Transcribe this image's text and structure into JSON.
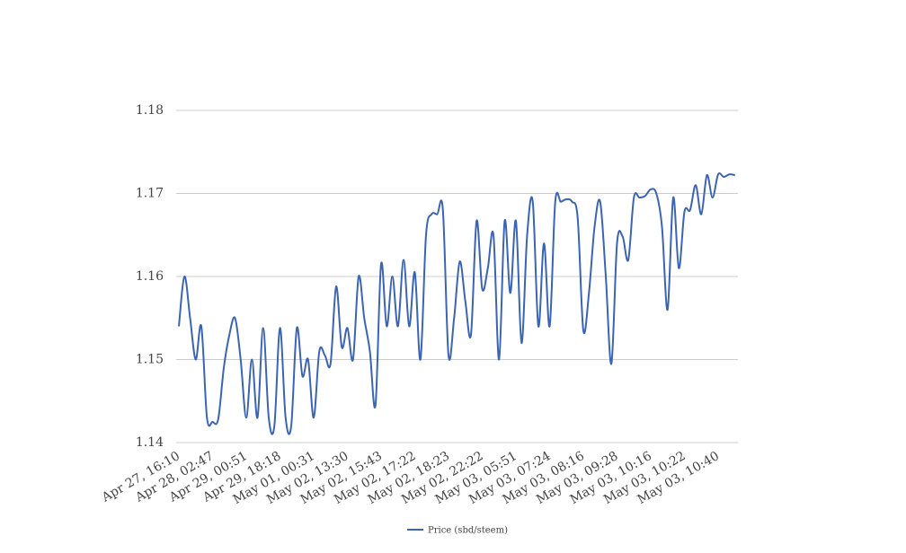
{
  "chart_data": {
    "type": "line",
    "categories": [
      "Apr 27, 16:10",
      null,
      null,
      null,
      null,
      null,
      "Apr 28, 02:47",
      null,
      null,
      null,
      null,
      null,
      "Apr 29, 00:51",
      null,
      null,
      null,
      null,
      null,
      "Apr 29, 18:18",
      null,
      null,
      null,
      null,
      null,
      "May 01, 00:31",
      null,
      null,
      null,
      null,
      null,
      "May 02, 13:30",
      null,
      null,
      null,
      null,
      null,
      "May 02, 15:43",
      null,
      null,
      null,
      null,
      null,
      "May 02, 17:22",
      null,
      null,
      null,
      null,
      null,
      "May 02, 18:23",
      null,
      null,
      null,
      null,
      null,
      "May 02, 22:22",
      null,
      null,
      null,
      null,
      null,
      "May 03, 05:51",
      null,
      null,
      null,
      null,
      null,
      "May 03, 07:24",
      null,
      null,
      null,
      null,
      null,
      "May 03, 08:16",
      null,
      null,
      null,
      null,
      null,
      "May 03, 09:28",
      null,
      null,
      null,
      null,
      null,
      "May 03, 10:16",
      null,
      null,
      null,
      null,
      null,
      "May 03, 10:22",
      null,
      null,
      null,
      null,
      null,
      "May 03, 10:40",
      null,
      null,
      null
    ],
    "series": [
      {
        "name": "Price (sbd/steem)",
        "color": "#3a64b4",
        "values": [
          1.154,
          1.16,
          1.155,
          1.15,
          1.154,
          1.143,
          1.1425,
          1.1428,
          1.149,
          1.153,
          1.155,
          1.15,
          1.143,
          1.15,
          1.143,
          1.1538,
          1.143,
          1.142,
          1.1538,
          1.143,
          1.142,
          1.1538,
          1.148,
          1.15,
          1.143,
          1.151,
          1.1505,
          1.1495,
          1.1588,
          1.1515,
          1.1538,
          1.15,
          1.16,
          1.155,
          1.151,
          1.1445,
          1.1615,
          1.154,
          1.16,
          1.154,
          1.162,
          1.154,
          1.1605,
          1.15,
          1.165,
          1.1675,
          1.1675,
          1.168,
          1.1505,
          1.155,
          1.1618,
          1.157,
          1.153,
          1.1667,
          1.1585,
          1.161,
          1.165,
          1.15,
          1.1667,
          1.158,
          1.1667,
          1.152,
          1.165,
          1.169,
          1.154,
          1.164,
          1.154,
          1.169,
          1.169,
          1.1693,
          1.169,
          1.167,
          1.1535,
          1.158,
          1.166,
          1.169,
          1.16,
          1.1495,
          1.164,
          1.1648,
          1.162,
          1.1695,
          1.1695,
          1.1697,
          1.1705,
          1.17,
          1.166,
          1.156,
          1.1695,
          1.161,
          1.1678,
          1.168,
          1.171,
          1.1675,
          1.1722,
          1.1695,
          1.1723,
          1.172,
          1.1723,
          1.1722
        ]
      }
    ],
    "ylim": [
      1.14,
      1.18
    ],
    "yticks": [
      1.14,
      1.15,
      1.16,
      1.17,
      1.18
    ],
    "grid": true,
    "legend": "bottom"
  }
}
